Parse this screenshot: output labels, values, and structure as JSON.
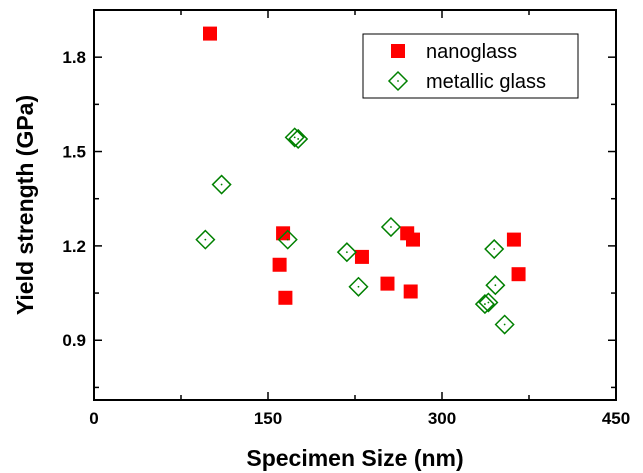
{
  "chart_data": {
    "type": "scatter",
    "title": "",
    "xlabel": "Specimen Size (nm)",
    "ylabel": "Yield strength (GPa)",
    "xlim": [
      0,
      450
    ],
    "ylim": [
      0.71,
      1.95
    ],
    "xticks": [
      0,
      150,
      300,
      450
    ],
    "xtick_labels": [
      "0",
      "150",
      "300",
      "450"
    ],
    "yticks": [
      0.9,
      1.2,
      1.5,
      1.8
    ],
    "ytick_labels": [
      "0.9",
      "1.2",
      "1.5",
      "1.8"
    ],
    "grid": false,
    "legend_position": "top-right",
    "series": [
      {
        "name": "nanoglass",
        "marker": "filled-square",
        "color": "#ff0000",
        "points": [
          [
            100,
            1.875
          ],
          [
            160,
            1.14
          ],
          [
            163,
            1.24
          ],
          [
            165,
            1.035
          ],
          [
            231,
            1.165
          ],
          [
            253,
            1.08
          ],
          [
            270,
            1.24
          ],
          [
            273,
            1.055
          ],
          [
            275,
            1.22
          ],
          [
            362,
            1.22
          ],
          [
            366,
            1.11
          ]
        ]
      },
      {
        "name": "metallic glass",
        "marker": "open-diamond",
        "color": "#008000",
        "points": [
          [
            96,
            1.22
          ],
          [
            110,
            1.395
          ],
          [
            167,
            1.22
          ],
          [
            173,
            1.545
          ],
          [
            176,
            1.54
          ],
          [
            218,
            1.18
          ],
          [
            228,
            1.07
          ],
          [
            256,
            1.26
          ],
          [
            337,
            1.015
          ],
          [
            340,
            1.02
          ],
          [
            345,
            1.19
          ],
          [
            346,
            1.075
          ],
          [
            354,
            0.95
          ]
        ]
      }
    ]
  }
}
